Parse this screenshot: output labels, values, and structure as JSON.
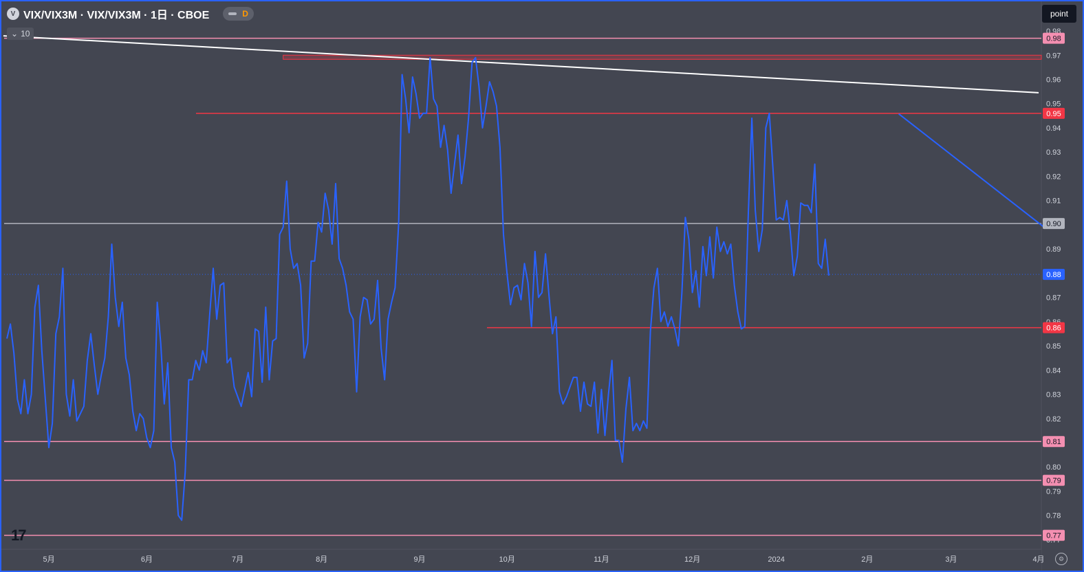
{
  "header": {
    "symbol_badge": "V",
    "title": "VIX/VIX3M · VIX/VIX3M · 1日 · CBOE",
    "interval_badge": "D"
  },
  "collapse_count": "10",
  "unit_label": "point",
  "chart_data": {
    "type": "line",
    "title": "VIX/VIX3M · VIX/VIX3M · 1日 · CBOE",
    "ylim": [
      0.766,
      0.982
    ],
    "xlim": [
      0,
      295
    ],
    "y_ticks": [
      "0.98",
      "0.97",
      "0.96",
      "0.95",
      "0.94",
      "0.93",
      "0.92",
      "0.91",
      "0.90",
      "0.89",
      "0.88",
      "0.87",
      "0.86",
      "0.85",
      "0.84",
      "0.83",
      "0.82",
      "0.81",
      "0.80",
      "0.79",
      "0.78",
      "0.77"
    ],
    "x_ticks": [
      {
        "label": "5月",
        "i": 12
      },
      {
        "label": "6月",
        "i": 40
      },
      {
        "label": "7月",
        "i": 66
      },
      {
        "label": "8月",
        "i": 90
      },
      {
        "label": "9月",
        "i": 118
      },
      {
        "label": "10月",
        "i": 143
      },
      {
        "label": "11月",
        "i": 170
      },
      {
        "label": "12月",
        "i": 196
      },
      {
        "label": "2024",
        "i": 220
      },
      {
        "label": "2月",
        "i": 246
      },
      {
        "label": "3月",
        "i": 270
      },
      {
        "label": "4月",
        "i": 295
      }
    ],
    "series": [
      {
        "values": [
          0.853,
          0.859,
          0.847,
          0.828,
          0.822,
          0.836,
          0.822,
          0.83,
          0.866,
          0.875,
          0.848,
          0.828,
          0.808,
          0.818,
          0.855,
          0.862,
          0.882,
          0.83,
          0.821,
          0.836,
          0.819,
          0.822,
          0.825,
          0.844,
          0.855,
          0.842,
          0.83,
          0.838,
          0.845,
          0.862,
          0.892,
          0.87,
          0.858,
          0.868,
          0.845,
          0.838,
          0.823,
          0.815,
          0.822,
          0.82,
          0.812,
          0.808,
          0.815,
          0.868,
          0.851,
          0.826,
          0.843,
          0.808,
          0.802,
          0.78,
          0.778,
          0.798,
          0.836,
          0.836,
          0.844,
          0.84,
          0.848,
          0.843,
          0.863,
          0.882,
          0.861,
          0.875,
          0.876,
          0.843,
          0.845,
          0.833,
          0.829,
          0.825,
          0.832,
          0.839,
          0.829,
          0.857,
          0.856,
          0.835,
          0.866,
          0.836,
          0.852,
          0.853,
          0.896,
          0.899,
          0.918,
          0.89,
          0.882,
          0.884,
          0.875,
          0.845,
          0.851,
          0.885,
          0.885,
          0.901,
          0.897,
          0.913,
          0.906,
          0.892,
          0.917,
          0.886,
          0.882,
          0.875,
          0.864,
          0.861,
          0.831,
          0.862,
          0.87,
          0.869,
          0.859,
          0.861,
          0.877,
          0.849,
          0.836,
          0.861,
          0.868,
          0.874,
          0.9,
          0.962,
          0.952,
          0.938,
          0.961,
          0.954,
          0.944,
          0.946,
          0.946,
          0.969,
          0.952,
          0.949,
          0.932,
          0.941,
          0.931,
          0.913,
          0.925,
          0.937,
          0.917,
          0.928,
          0.944,
          0.967,
          0.969,
          0.957,
          0.94,
          0.949,
          0.959,
          0.955,
          0.949,
          0.932,
          0.896,
          0.88,
          0.867,
          0.874,
          0.875,
          0.869,
          0.884,
          0.876,
          0.858,
          0.889,
          0.87,
          0.872,
          0.888,
          0.871,
          0.855,
          0.862,
          0.831,
          0.826,
          0.829,
          0.833,
          0.837,
          0.837,
          0.823,
          0.835,
          0.826,
          0.825,
          0.835,
          0.814,
          0.832,
          0.813,
          0.83,
          0.844,
          0.811,
          0.811,
          0.802,
          0.824,
          0.837,
          0.815,
          0.818,
          0.815,
          0.819,
          0.816,
          0.856,
          0.874,
          0.882,
          0.86,
          0.864,
          0.858,
          0.862,
          0.857,
          0.85,
          0.872,
          0.903,
          0.894,
          0.872,
          0.881,
          0.866,
          0.891,
          0.879,
          0.895,
          0.878,
          0.899,
          0.889,
          0.893,
          0.888,
          0.892,
          0.875,
          0.864,
          0.857,
          0.858,
          0.905,
          0.944,
          0.906,
          0.889,
          0.898,
          0.94,
          0.946,
          0.924,
          0.902,
          0.903,
          0.902,
          0.91,
          0.897,
          0.879,
          0.887,
          0.909,
          0.908,
          0.908,
          0.905,
          0.925,
          0.884,
          0.882,
          0.894,
          0.879
        ]
      }
    ],
    "hlines": [
      {
        "y": 0.977,
        "label": "0.98",
        "color": "#f48fb1"
      },
      {
        "y": 0.946,
        "label": "0.95",
        "color": "#f23645"
      },
      {
        "y": 0.9005,
        "label": "0.90",
        "color": "#b2b5be"
      },
      {
        "y": 0.8575,
        "label": "0.86",
        "color": "#f23645"
      },
      {
        "y": 0.8105,
        "label": "0.81",
        "color": "#f48fb1"
      },
      {
        "y": 0.7945,
        "label": "0.79",
        "color": "#f48fb1"
      },
      {
        "y": 0.7718,
        "label": "0.77",
        "color": "#f48fb1"
      }
    ],
    "last_value": {
      "y": 0.8795,
      "label": "0.88",
      "color": "#2962ff"
    },
    "trendlines": [
      {
        "from": [
          -1,
          0.978
        ],
        "to": [
          295,
          0.9545
        ],
        "color": "#ffffff"
      },
      {
        "from": [
          255,
          0.9458
        ],
        "to": [
          297,
          0.8985
        ],
        "color": "#2962ff"
      }
    ],
    "zone": {
      "from_i": 79,
      "to_i": 298,
      "y1": 0.9683,
      "y2": 0.97,
      "color": "#f23645"
    }
  }
}
